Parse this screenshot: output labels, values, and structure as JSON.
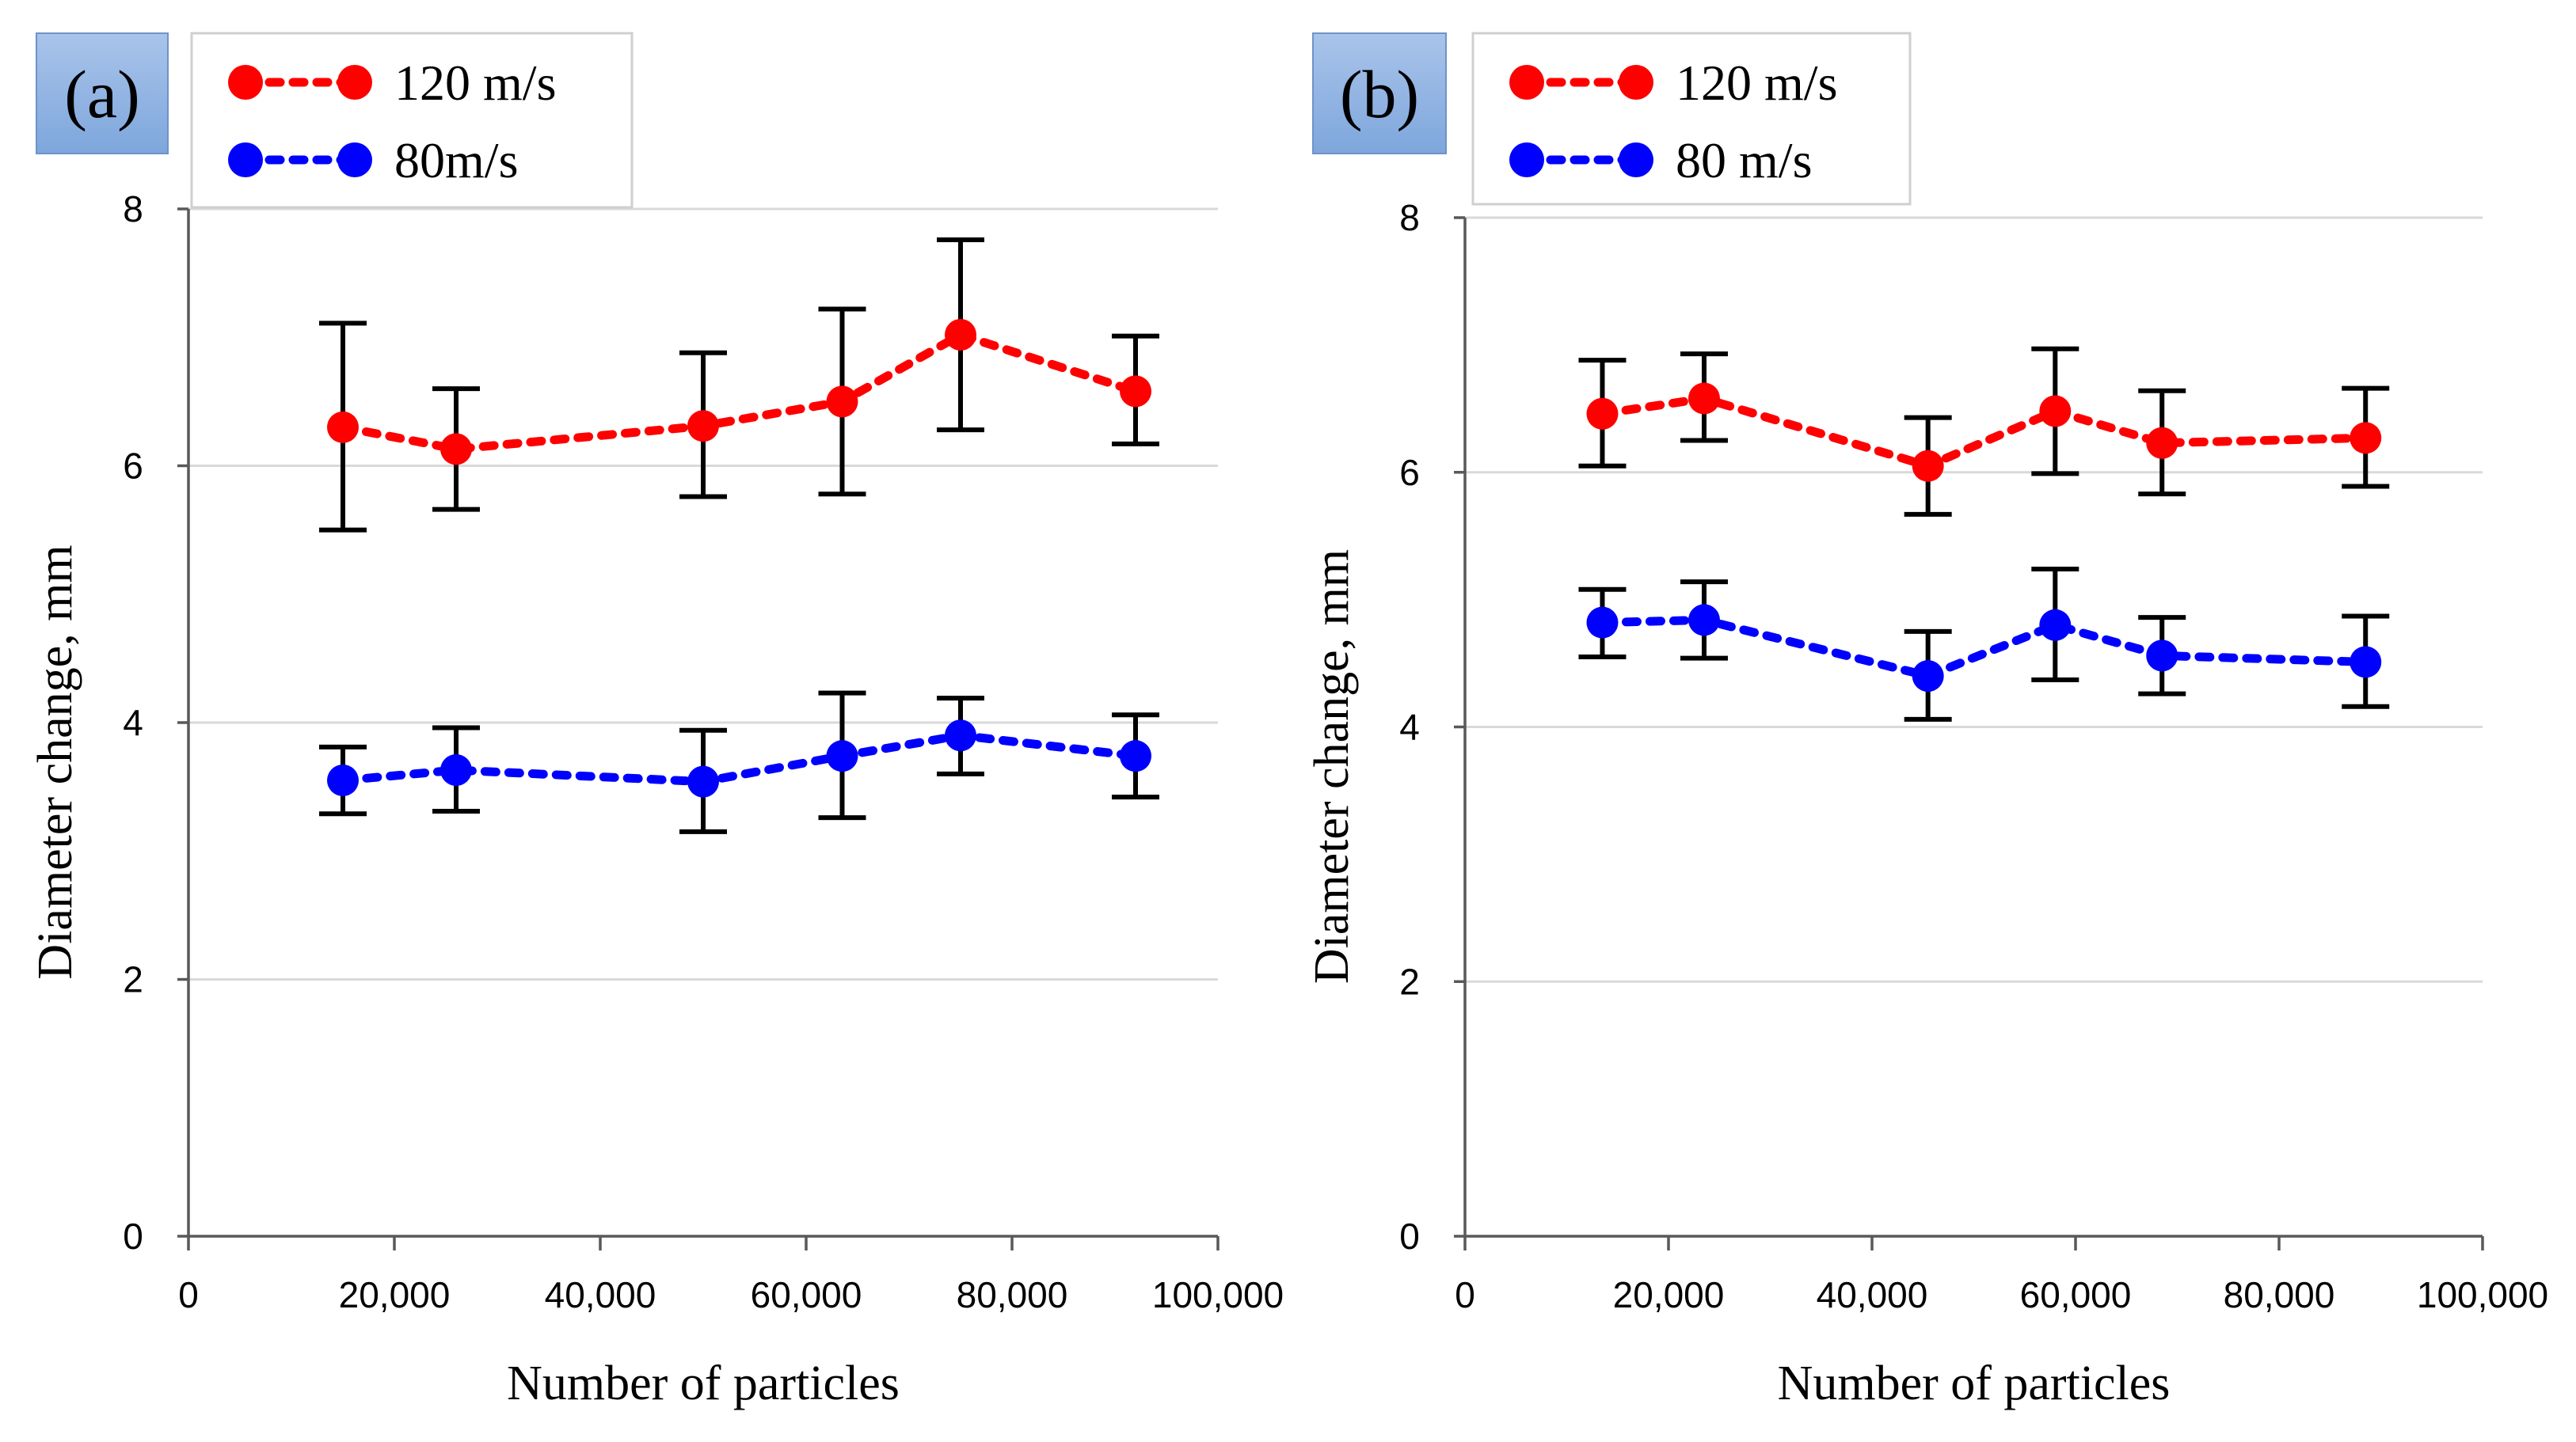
{
  "chart_data": [
    {
      "type": "line",
      "panel_label": "(a)",
      "xlabel": "Number of particles",
      "ylabel": "Diameter change, mm",
      "xlim": [
        0,
        100000
      ],
      "ylim": [
        0,
        8
      ],
      "xticks": [
        0,
        20000,
        40000,
        60000,
        80000,
        100000
      ],
      "xtick_labels": [
        "0",
        "20,000",
        "40,000",
        "60,000",
        "80,000",
        "100,000"
      ],
      "yticks": [
        0,
        2,
        4,
        6,
        8
      ],
      "ytick_labels": [
        "0",
        "2",
        "4",
        "6",
        "8"
      ],
      "grid": true,
      "legend_position": "top-left",
      "series": [
        {
          "name": "120 m/s",
          "color": "#ff0000",
          "x": [
            15000,
            26000,
            50000,
            63500,
            75000,
            92000
          ],
          "values": [
            6.3,
            6.13,
            6.31,
            6.5,
            7.02,
            6.58
          ],
          "err_low": [
            5.5,
            5.66,
            5.76,
            5.78,
            6.28,
            6.17
          ],
          "err_high": [
            7.11,
            6.6,
            6.88,
            7.22,
            7.76,
            7.01
          ]
        },
        {
          "name": "80m/s",
          "color": "#0000ff",
          "x": [
            15000,
            26000,
            50000,
            63500,
            75000,
            92000
          ],
          "values": [
            3.55,
            3.63,
            3.54,
            3.74,
            3.9,
            3.74
          ],
          "err_low": [
            3.29,
            3.31,
            3.15,
            3.26,
            3.6,
            3.42
          ],
          "err_high": [
            3.81,
            3.96,
            3.94,
            4.23,
            4.19,
            4.06
          ]
        }
      ]
    },
    {
      "type": "line",
      "panel_label": "(b)",
      "xlabel": "Number of particles",
      "ylabel": "Diameter change, mm",
      "xlim": [
        0,
        100000
      ],
      "ylim": [
        0,
        8
      ],
      "xticks": [
        0,
        20000,
        40000,
        60000,
        80000,
        100000
      ],
      "xtick_labels": [
        "0",
        "20,000",
        "40,000",
        "60,000",
        "80,000",
        "100,000"
      ],
      "yticks": [
        0,
        2,
        4,
        6,
        8
      ],
      "ytick_labels": [
        "0",
        "2",
        "4",
        "6",
        "8"
      ],
      "grid": true,
      "legend_position": "top-left",
      "series": [
        {
          "name": "120 m/s",
          "color": "#ff0000",
          "x": [
            13500,
            23500,
            45500,
            58000,
            68500,
            88500
          ],
          "values": [
            6.46,
            6.58,
            6.05,
            6.48,
            6.23,
            6.27
          ],
          "err_low": [
            6.05,
            6.25,
            5.67,
            5.99,
            5.83,
            5.89
          ],
          "err_high": [
            6.88,
            6.93,
            6.43,
            6.97,
            6.64,
            6.66
          ]
        },
        {
          "name": "80 m/s",
          "color": "#0000ff",
          "x": [
            13500,
            23500,
            45500,
            58000,
            68500,
            88500
          ],
          "values": [
            4.82,
            4.84,
            4.4,
            4.8,
            4.56,
            4.51
          ],
          "err_low": [
            4.55,
            4.54,
            4.06,
            4.37,
            4.26,
            4.16
          ],
          "err_high": [
            5.08,
            5.14,
            4.75,
            5.24,
            4.86,
            4.87
          ]
        }
      ]
    }
  ]
}
